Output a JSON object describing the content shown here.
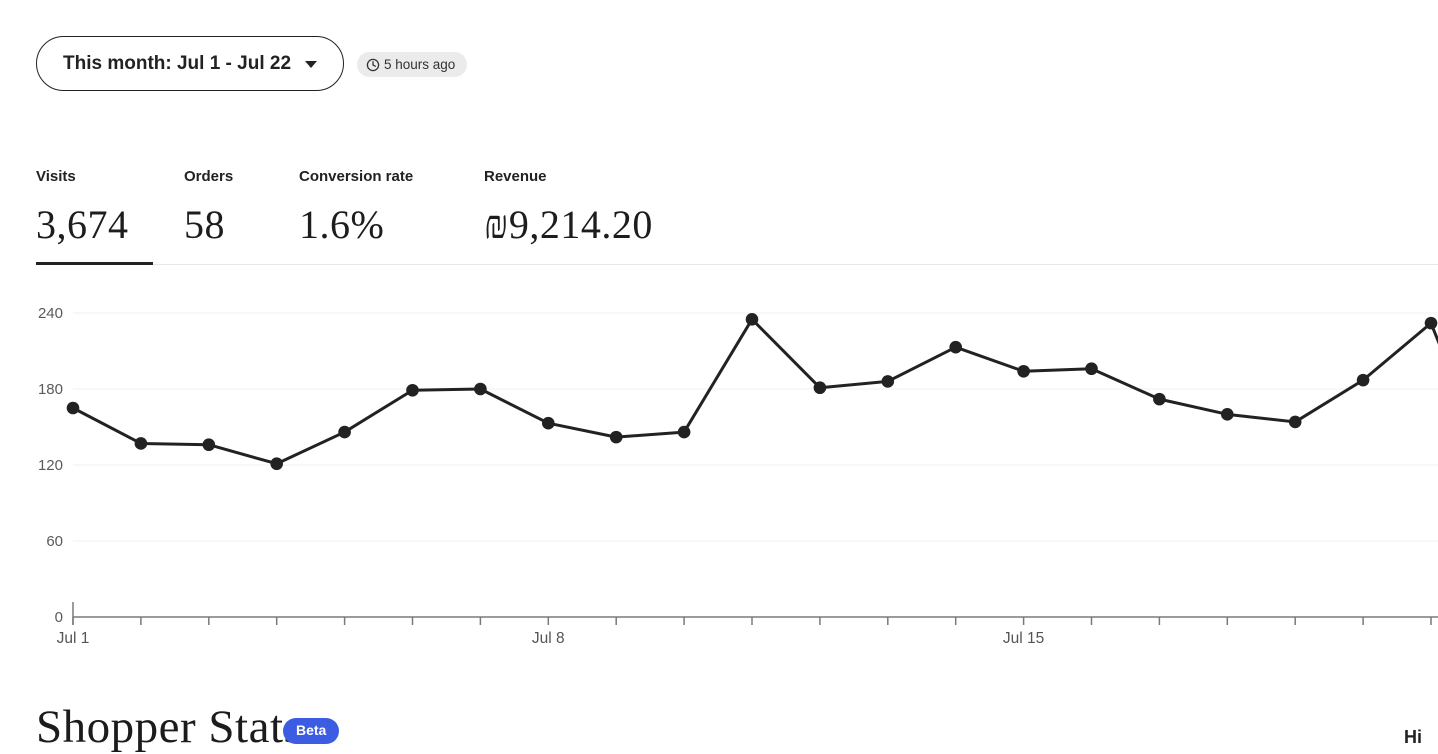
{
  "header": {
    "date_range_label": "This month: Jul 1 - Jul 22",
    "last_updated": "5 hours ago"
  },
  "stats_tabs": [
    {
      "label": "Visits",
      "value": "3,674",
      "active": true
    },
    {
      "label": "Orders",
      "value": "58",
      "active": false
    },
    {
      "label": "Conversion rate",
      "value": "1.6%",
      "active": false
    },
    {
      "label": "Revenue",
      "value": "₪9,214.20",
      "active": false
    }
  ],
  "chart_data": {
    "type": "line",
    "title": "",
    "series_name": "Visits per day",
    "x_labels": [
      "Jul 1",
      "Jul 2",
      "Jul 3",
      "Jul 4",
      "Jul 5",
      "Jul 6",
      "Jul 7",
      "Jul 8",
      "Jul 9",
      "Jul 10",
      "Jul 11",
      "Jul 12",
      "Jul 13",
      "Jul 14",
      "Jul 15",
      "Jul 16",
      "Jul 17",
      "Jul 18",
      "Jul 19",
      "Jul 20",
      "Jul 21"
    ],
    "values": [
      165,
      137,
      136,
      121,
      146,
      179,
      180,
      153,
      142,
      146,
      235,
      181,
      186,
      213,
      194,
      196,
      172,
      160,
      154,
      187,
      232
    ],
    "shown_x_ticks": [
      {
        "index": 0,
        "label": "Jul 1"
      },
      {
        "index": 7,
        "label": "Jul 8"
      },
      {
        "index": 14,
        "label": "Jul 15"
      }
    ],
    "ylim": [
      0,
      240
    ],
    "yticks": [
      0,
      60,
      120,
      180,
      240
    ],
    "grid": "horizontal",
    "legend": "none",
    "continues_beyond_right_edge": true,
    "line_color": "#222222",
    "point_color": "#222222",
    "axis_color": "#7a7a7a",
    "grid_color": "#f1f1f1",
    "tick_label_color": "#5a5a5a"
  },
  "footer": {
    "section_title": "Shopper Stats",
    "beta_badge": "Beta",
    "clipped_text": "Hi"
  },
  "colors": {
    "accent_blue": "#3c5ce1",
    "badge_bg": "#ebebeb",
    "text_dark": "#222222"
  }
}
